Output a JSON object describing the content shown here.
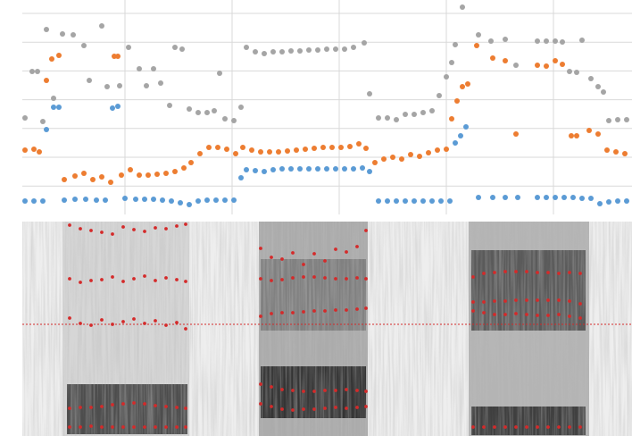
{
  "chart_data": [
    {
      "type": "scatter",
      "grid": true,
      "xlim": [
        0,
        708
      ],
      "ylim": [
        0,
        240
      ],
      "series": [
        {
          "color": "#a5a5a5",
          "x": [
            28,
            36,
            42,
            48,
            52,
            60,
            70,
            82,
            94,
            100,
            114,
            120,
            134,
            144,
            156,
            164,
            172,
            180,
            190,
            196,
            204,
            212,
            222,
            232,
            240,
            246,
            252,
            262,
            270,
            276,
            286,
            296,
            306,
            316,
            326,
            336,
            346,
            356,
            366,
            376,
            386,
            396,
            408,
            414,
            424,
            434,
            444,
            454,
            464,
            474,
            484,
            492,
            500,
            506,
            510,
            518,
            536,
            550,
            566,
            578,
            602,
            612,
            622,
            630,
            638,
            646,
            652,
            662,
            670,
            676,
            682,
            692,
            702
          ],
          "values": [
            108,
            160,
            160,
            104,
            207,
            130,
            202,
            201,
            189,
            150,
            211,
            143,
            144,
            187,
            163,
            144,
            163,
            147,
            122,
            187,
            185,
            118,
            114,
            114,
            116,
            158,
            107,
            105,
            120,
            187,
            182,
            180,
            182,
            182,
            183,
            183,
            184,
            184,
            185,
            185,
            185,
            187,
            192,
            135,
            108,
            108,
            106,
            112,
            112,
            114,
            116,
            133,
            154,
            170,
            190,
            232,
            201,
            194,
            196,
            167,
            194,
            194,
            194,
            193,
            160,
            159,
            195,
            152,
            143,
            137,
            105,
            106,
            106
          ]
        },
        {
          "color": "#ed7d31",
          "x": [
            28,
            38,
            44,
            52,
            58,
            66,
            72,
            84,
            94,
            104,
            114,
            124,
            128,
            132,
            136,
            146,
            156,
            166,
            176,
            186,
            196,
            206,
            214,
            224,
            234,
            244,
            254,
            264,
            272,
            282,
            292,
            302,
            312,
            322,
            332,
            342,
            352,
            362,
            372,
            382,
            392,
            402,
            410,
            420,
            430,
            440,
            450,
            460,
            470,
            480,
            490,
            500,
            506,
            512,
            518,
            524,
            534,
            552,
            566,
            578,
            602,
            612,
            622,
            630,
            640,
            646,
            660,
            670,
            680,
            690,
            700
          ],
          "values": [
            72,
            73,
            70,
            150,
            174,
            178,
            39,
            43,
            46,
            39,
            42,
            36,
            177,
            177,
            44,
            50,
            44,
            44,
            45,
            46,
            48,
            52,
            58,
            68,
            75,
            75,
            73,
            68,
            75,
            72,
            70,
            70,
            70,
            71,
            72,
            73,
            74,
            75,
            75,
            75,
            76,
            79,
            74,
            58,
            62,
            64,
            62,
            67,
            65,
            69,
            72,
            73,
            107,
            127,
            143,
            146,
            189,
            175,
            172,
            90,
            167,
            166,
            172,
            168,
            88,
            88,
            94,
            90,
            72,
            70,
            68
          ]
        },
        {
          "color": "#5b9bd5",
          "x": [
            28,
            38,
            48,
            52,
            60,
            66,
            72,
            84,
            96,
            108,
            118,
            126,
            132,
            140,
            152,
            162,
            172,
            182,
            192,
            202,
            212,
            222,
            232,
            242,
            252,
            262,
            270,
            276,
            286,
            296,
            306,
            316,
            326,
            336,
            346,
            356,
            366,
            376,
            386,
            396,
            406,
            414,
            424,
            434,
            444,
            454,
            464,
            474,
            484,
            494,
            504,
            510,
            516,
            522,
            536,
            552,
            566,
            580,
            602,
            612,
            622,
            632,
            642,
            652,
            662,
            672,
            682,
            692,
            702
          ],
          "values": [
            15,
            15,
            15,
            95,
            120,
            120,
            16,
            17,
            17,
            16,
            16,
            119,
            121,
            18,
            17,
            17,
            17,
            16,
            15,
            13,
            11,
            15,
            16,
            16,
            16,
            16,
            41,
            50,
            49,
            48,
            50,
            51,
            51,
            51,
            51,
            51,
            51,
            51,
            51,
            51,
            52,
            48,
            15,
            15,
            15,
            15,
            15,
            15,
            15,
            15,
            15,
            80,
            88,
            98,
            19,
            19,
            19,
            19,
            19,
            19,
            19,
            19,
            19,
            18,
            18,
            12,
            14,
            15,
            15
          ]
        }
      ]
    },
    {
      "type": "scatter",
      "xlim": [
        0,
        708
      ],
      "ylim": [
        0,
        240
      ],
      "series": [
        {
          "color": "#d42a2a",
          "x": [
            78,
            90,
            102,
            114,
            126,
            138,
            150,
            162,
            174,
            186,
            198,
            208,
            78,
            90,
            102,
            114,
            126,
            138,
            150,
            162,
            174,
            186,
            198,
            208,
            78,
            90,
            102,
            114,
            126,
            138,
            150,
            162,
            174,
            186,
            198,
            208,
            78,
            90,
            102,
            114,
            126,
            138,
            150,
            162,
            174,
            186,
            198,
            208,
            78,
            90,
            102,
            114,
            126,
            138,
            150,
            162,
            174,
            186,
            198,
            208,
            292,
            304,
            316,
            328,
            340,
            352,
            364,
            376,
            388,
            400,
            410,
            292,
            304,
            316,
            328,
            340,
            352,
            364,
            376,
            388,
            400,
            410,
            292,
            304,
            316,
            328,
            340,
            352,
            364,
            376,
            388,
            400,
            410,
            292,
            304,
            316,
            328,
            340,
            352,
            364,
            376,
            388,
            400,
            410,
            292,
            304,
            316,
            328,
            340,
            352,
            364,
            376,
            388,
            400,
            410,
            530,
            542,
            554,
            566,
            578,
            590,
            602,
            614,
            626,
            638,
            650,
            530,
            542,
            554,
            566,
            578,
            590,
            602,
            614,
            626,
            638,
            650,
            530,
            542,
            554,
            566,
            578,
            590,
            602,
            614,
            626,
            638,
            650,
            530,
            542,
            554,
            566,
            578,
            590,
            602,
            614,
            626,
            638,
            650
          ],
          "values": [
            10,
            10,
            11,
            10,
            10,
            10,
            10,
            10,
            10,
            10,
            10,
            10,
            31,
            32,
            32,
            33,
            35,
            36,
            37,
            36,
            34,
            33,
            32,
            31,
            132,
            126,
            124,
            130,
            125,
            128,
            131,
            126,
            129,
            124,
            127,
            120,
            176,
            172,
            174,
            175,
            178,
            173,
            176,
            179,
            174,
            177,
            175,
            173,
            236,
            232,
            230,
            228,
            226,
            234,
            231,
            229,
            233,
            232,
            235,
            237,
            36,
            33,
            30,
            29,
            30,
            30,
            31,
            32,
            31,
            32,
            33,
            58,
            55,
            52,
            51,
            50,
            50,
            51,
            51,
            52,
            51,
            50,
            134,
            137,
            138,
            138,
            139,
            140,
            140,
            141,
            141,
            142,
            143,
            176,
            174,
            175,
            177,
            178,
            178,
            177,
            176,
            176,
            177,
            176,
            210,
            200,
            198,
            205,
            192,
            204,
            196,
            209,
            206,
            212,
            230,
            10,
            10,
            10,
            10,
            10,
            10,
            10,
            10,
            10,
            10,
            10,
            140,
            138,
            136,
            136,
            137,
            136,
            135,
            135,
            136,
            134,
            132,
            150,
            150,
            151,
            151,
            152,
            152,
            152,
            152,
            152,
            151,
            148,
            178,
            182,
            183,
            184,
            184,
            184,
            183,
            183,
            182,
            183,
            182
          ]
        }
      ]
    }
  ]
}
